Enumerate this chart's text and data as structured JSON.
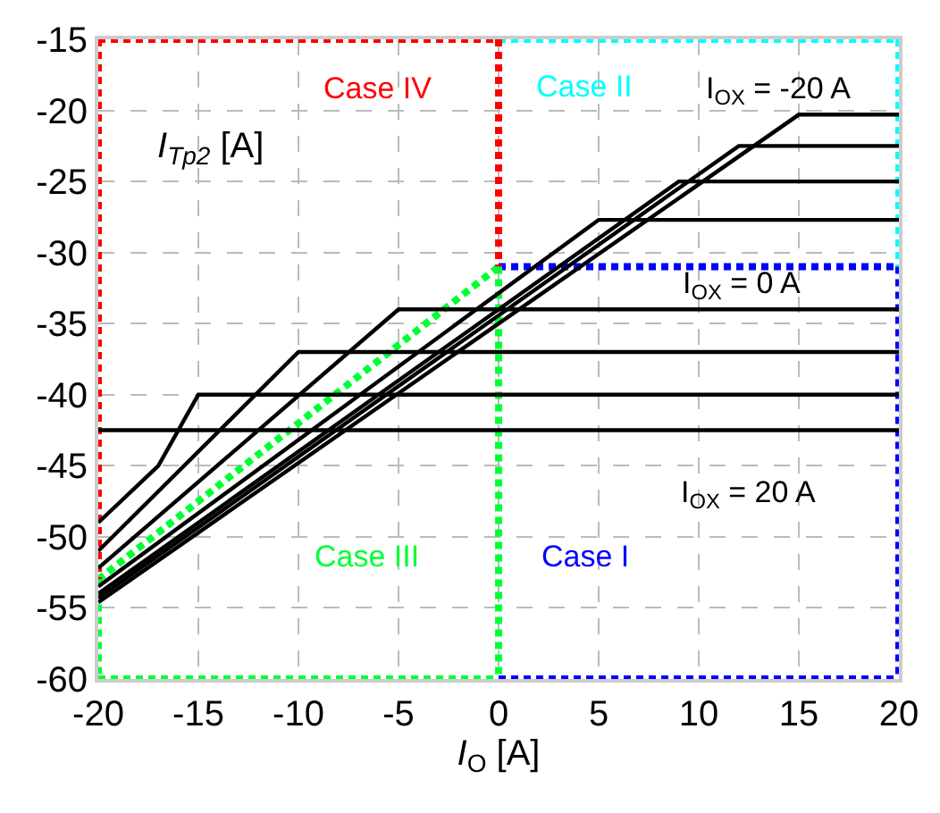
{
  "chart_data": {
    "type": "line",
    "xlabel": "I$_{O}$ [A]",
    "ylabel": "I$_{Tp2}$ [A]",
    "xlim": [
      -20,
      20
    ],
    "ylim": [
      -60,
      -15
    ],
    "xticks": [
      -20,
      -15,
      -10,
      -5,
      0,
      5,
      10,
      15,
      20
    ],
    "yticks": [
      -60,
      -55,
      -50,
      -45,
      -40,
      -35,
      -30,
      -25,
      -20,
      -15
    ],
    "grid": true,
    "marker": "none",
    "series": [
      {
        "color": "#ff0000",
        "line_style": "dotted",
        "x": [
          -20,
          0
        ],
        "values": [
          -15,
          -15
        ]
      },
      {
        "color": "#00ffff",
        "line_style": "dotted",
        "x": [
          0,
          20
        ],
        "values": [
          -15,
          -15
        ]
      },
      {
        "color": "#00ff33",
        "line_style": "dotted",
        "x": [
          -20,
          0
        ],
        "values": [
          -53,
          -31
        ]
      },
      {
        "color": "#0000ff",
        "line_style": "dotted",
        "x": [
          0,
          20
        ],
        "values": [
          -31,
          -31
        ]
      },
      {
        "color": "#ff0000",
        "line_style": "dotted",
        "x": [
          0,
          0
        ],
        "values": [
          -15,
          -31
        ]
      },
      {
        "color": "#ff0000",
        "line_style": "dotted",
        "x": [
          -20,
          -20
        ],
        "values": [
          -15,
          -53
        ]
      },
      {
        "color": "#00ffff",
        "line_style": "dotted",
        "x": [
          20,
          20
        ],
        "values": [
          -15,
          -31
        ]
      },
      {
        "color": "#0000ff",
        "line_style": "dotted",
        "x": [
          20,
          20
        ],
        "values": [
          -31,
          -60
        ]
      },
      {
        "color": "#0000ff",
        "line_style": "dotted",
        "x": [
          0,
          20
        ],
        "values": [
          -60,
          -60
        ]
      },
      {
        "color": "#00ff33",
        "line_style": "dotted",
        "x": [
          -20,
          0
        ],
        "values": [
          -60,
          -60
        ]
      },
      {
        "color": "#00ff33",
        "line_style": "dotted",
        "x": [
          -20,
          -20
        ],
        "values": [
          -53,
          -60
        ]
      },
      {
        "color": "#00ff33",
        "line_style": "dotted",
        "x": [
          0,
          0
        ],
        "values": [
          -31,
          -60
        ]
      },
      {
        "color": "#000000",
        "line_style": "solid",
        "x": [
          -20,
          20
        ],
        "values": [
          -42.5,
          -42.5
        ]
      },
      {
        "color": "#000000",
        "line_style": "solid",
        "x": [
          -20,
          -17,
          -15,
          20
        ],
        "values": [
          -49,
          -45,
          -40,
          -40
        ]
      },
      {
        "color": "#000000",
        "line_style": "solid",
        "x": [
          -20,
          -10,
          20
        ],
        "values": [
          -51,
          -37,
          -37
        ]
      },
      {
        "color": "#000000",
        "line_style": "solid",
        "x": [
          -20,
          -5,
          20
        ],
        "values": [
          -52.2,
          -34,
          -34
        ]
      },
      {
        "color": "#000000",
        "line_style": "solid",
        "x": [
          -20,
          5,
          20
        ],
        "values": [
          -53.5,
          -27.7,
          -27.7
        ]
      },
      {
        "color": "#000000",
        "line_style": "solid",
        "x": [
          -20,
          9,
          20
        ],
        "values": [
          -54,
          -25,
          -25
        ]
      },
      {
        "color": "#000000",
        "line_style": "solid",
        "x": [
          -20,
          12,
          20
        ],
        "values": [
          -54.3,
          -22.5,
          -22.5
        ]
      },
      {
        "color": "#000000",
        "line_style": "solid",
        "x": [
          -20,
          15,
          20
        ],
        "values": [
          -54.6,
          -20.3,
          -20.3
        ]
      }
    ],
    "annotations": [
      "Case IV",
      "Case II",
      "Case III",
      "Case I",
      "I$_{OX}$ = -20 A",
      "I$_{OX}$ = 0 A",
      "I$_{OX}$ = 20 A"
    ]
  }
}
